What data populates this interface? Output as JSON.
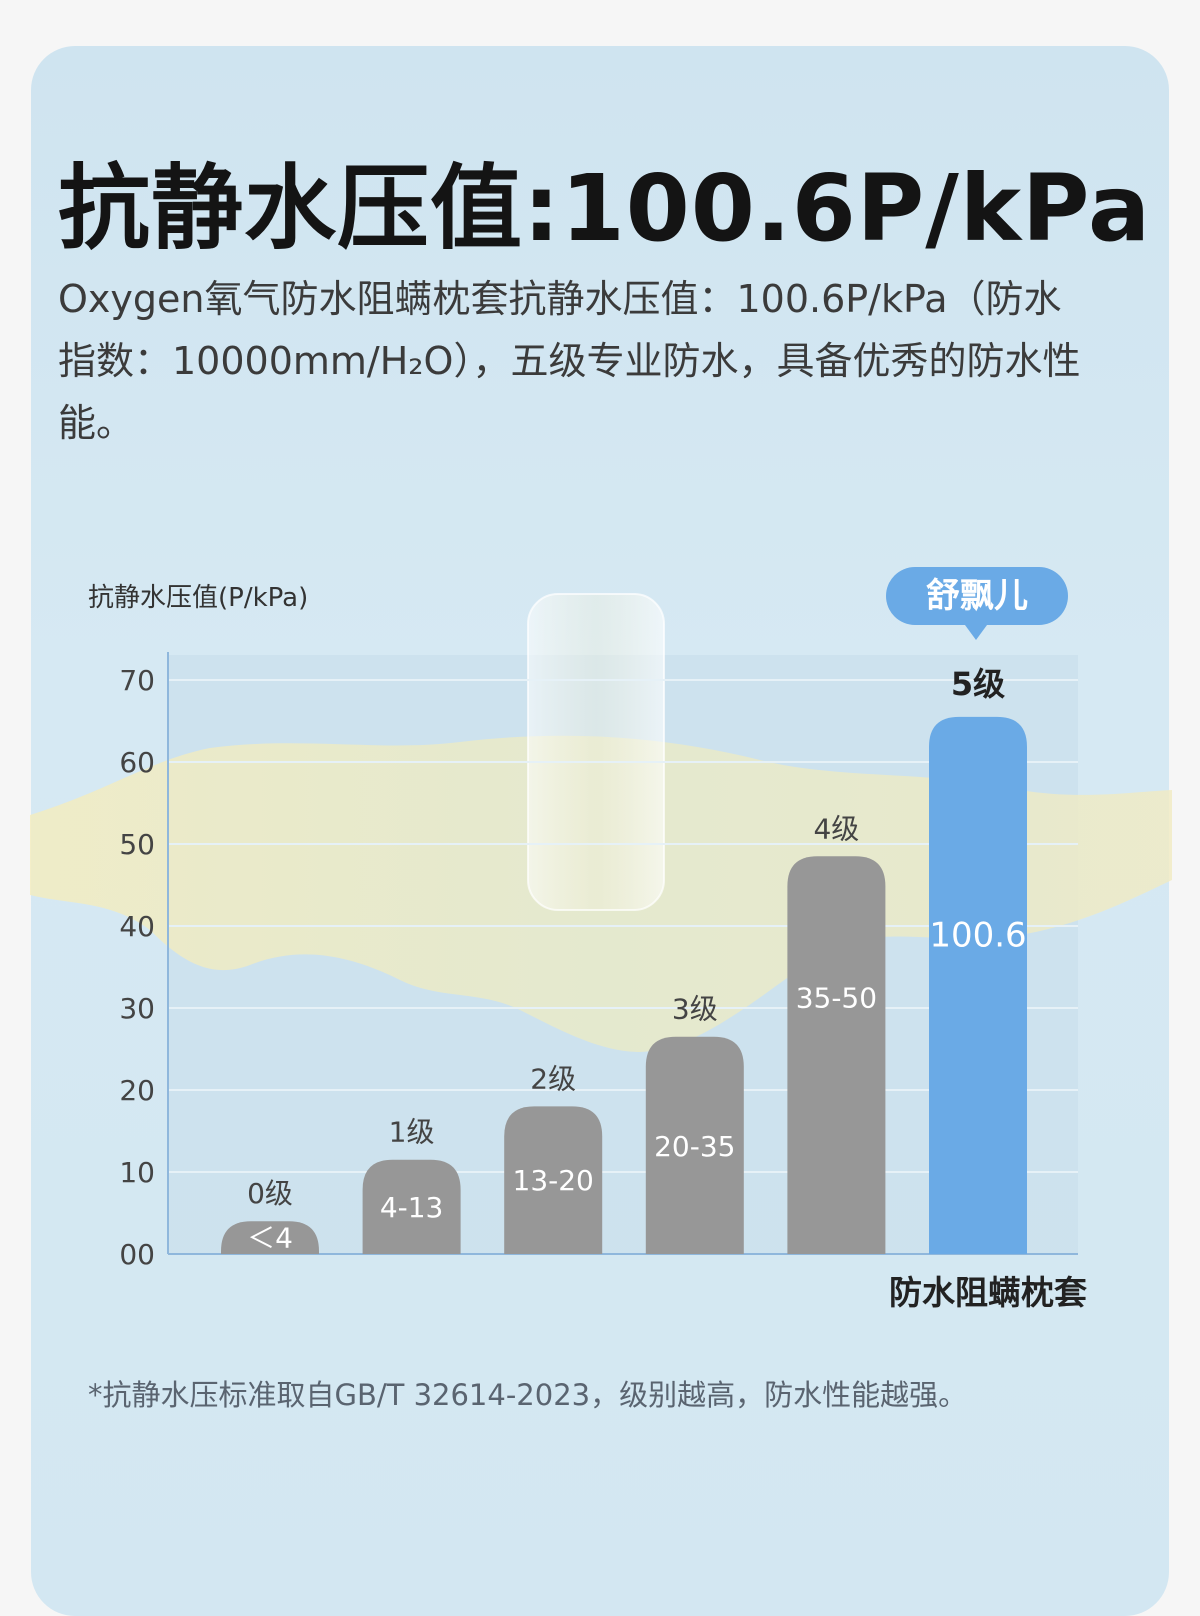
{
  "headline": "抗静水压值:100.6P/kPa",
  "description": "Oxygen氧气防水阻螨枕套抗静水压值：100.6P/kPa（防水指数：10000mm/H₂O），五级专业防水，具备优秀的防水性能。",
  "footnote": "*抗静水压标准取自GB/T 32614-2023，级别越高，防水性能越强。",
  "colors": {
    "bar": "#979797",
    "highlight": "#6aaae6",
    "badge": "#6aaae6",
    "card": "#d3e7f2"
  },
  "chart_data": {
    "type": "bar",
    "ylabel": "抗静水压值(P/kPa)",
    "xlabel": "防水阻螨枕套",
    "ylim": [
      0,
      70
    ],
    "yticks": [
      "00",
      "10",
      "20",
      "30",
      "40",
      "50",
      "60",
      "70"
    ],
    "grid": true,
    "badge": "舒飘儿",
    "highlight_index": 5,
    "bars": [
      {
        "grade": "0级",
        "range": "＜4",
        "value": 4
      },
      {
        "grade": "1级",
        "range": "4-13",
        "value": 11.5
      },
      {
        "grade": "2级",
        "range": "13-20",
        "value": 18
      },
      {
        "grade": "3级",
        "range": "20-35",
        "value": 26.5
      },
      {
        "grade": "4级",
        "range": "35-50",
        "value": 48.5
      },
      {
        "grade": "5级",
        "range": "100.6",
        "value": 65.5
      }
    ]
  }
}
